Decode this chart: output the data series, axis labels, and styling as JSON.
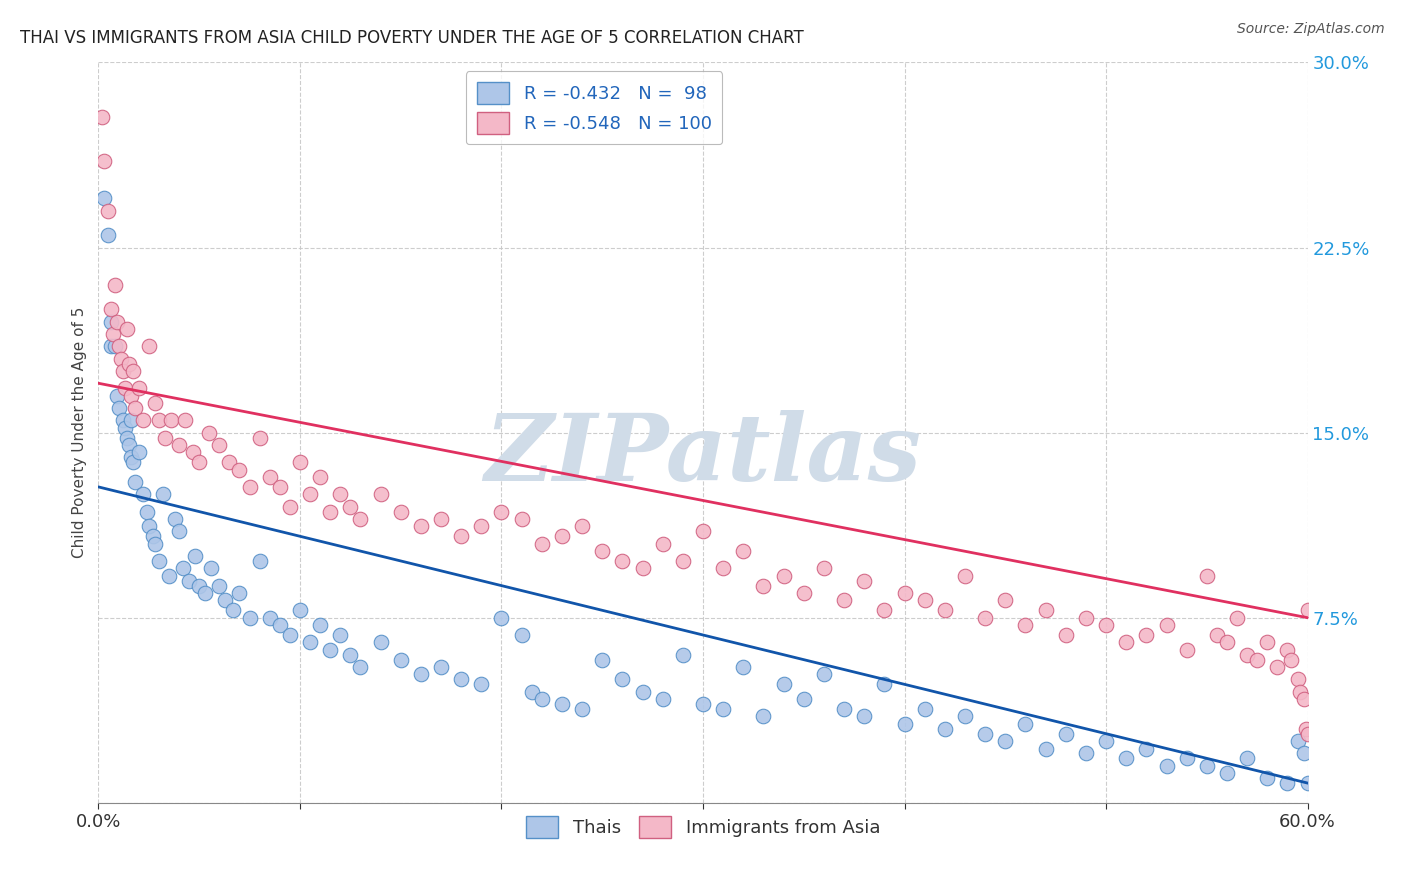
{
  "title": "THAI VS IMMIGRANTS FROM ASIA CHILD POVERTY UNDER THE AGE OF 5 CORRELATION CHART",
  "source": "Source: ZipAtlas.com",
  "ylabel": "Child Poverty Under the Age of 5",
  "xmin": 0.0,
  "xmax": 0.6,
  "ymin": 0.0,
  "ymax": 0.3,
  "yticks": [
    0.0,
    0.075,
    0.15,
    0.225,
    0.3
  ],
  "background_color": "#ffffff",
  "grid_color": "#c8c8c8",
  "watermark_text": "ZIPatlas",
  "watermark_color": "#d0dce8",
  "series": [
    {
      "name": "Thais",
      "face_color": "#aec6e8",
      "edge_color": "#5590c8",
      "line_color": "#1155aa",
      "legend_label": "R = -0.432   N =  98",
      "trend_x0": 0.0,
      "trend_x1": 0.6,
      "trend_y0": 0.128,
      "trend_y1": 0.008,
      "points_x": [
        0.003,
        0.005,
        0.006,
        0.006,
        0.008,
        0.009,
        0.01,
        0.012,
        0.013,
        0.014,
        0.015,
        0.016,
        0.016,
        0.017,
        0.018,
        0.02,
        0.022,
        0.024,
        0.025,
        0.027,
        0.028,
        0.03,
        0.032,
        0.035,
        0.038,
        0.04,
        0.042,
        0.045,
        0.048,
        0.05,
        0.053,
        0.056,
        0.06,
        0.063,
        0.067,
        0.07,
        0.075,
        0.08,
        0.085,
        0.09,
        0.095,
        0.1,
        0.105,
        0.11,
        0.115,
        0.12,
        0.125,
        0.13,
        0.14,
        0.15,
        0.16,
        0.17,
        0.18,
        0.19,
        0.2,
        0.21,
        0.215,
        0.22,
        0.23,
        0.24,
        0.25,
        0.26,
        0.27,
        0.28,
        0.29,
        0.3,
        0.31,
        0.32,
        0.33,
        0.34,
        0.35,
        0.36,
        0.37,
        0.38,
        0.39,
        0.4,
        0.41,
        0.42,
        0.43,
        0.44,
        0.45,
        0.46,
        0.47,
        0.48,
        0.49,
        0.5,
        0.51,
        0.52,
        0.53,
        0.54,
        0.55,
        0.56,
        0.57,
        0.58,
        0.59,
        0.595,
        0.598,
        0.6
      ],
      "points_y": [
        0.245,
        0.23,
        0.195,
        0.185,
        0.185,
        0.165,
        0.16,
        0.155,
        0.152,
        0.148,
        0.145,
        0.14,
        0.155,
        0.138,
        0.13,
        0.142,
        0.125,
        0.118,
        0.112,
        0.108,
        0.105,
        0.098,
        0.125,
        0.092,
        0.115,
        0.11,
        0.095,
        0.09,
        0.1,
        0.088,
        0.085,
        0.095,
        0.088,
        0.082,
        0.078,
        0.085,
        0.075,
        0.098,
        0.075,
        0.072,
        0.068,
        0.078,
        0.065,
        0.072,
        0.062,
        0.068,
        0.06,
        0.055,
        0.065,
        0.058,
        0.052,
        0.055,
        0.05,
        0.048,
        0.075,
        0.068,
        0.045,
        0.042,
        0.04,
        0.038,
        0.058,
        0.05,
        0.045,
        0.042,
        0.06,
        0.04,
        0.038,
        0.055,
        0.035,
        0.048,
        0.042,
        0.052,
        0.038,
        0.035,
        0.048,
        0.032,
        0.038,
        0.03,
        0.035,
        0.028,
        0.025,
        0.032,
        0.022,
        0.028,
        0.02,
        0.025,
        0.018,
        0.022,
        0.015,
        0.018,
        0.015,
        0.012,
        0.018,
        0.01,
        0.008,
        0.025,
        0.02,
        0.008
      ]
    },
    {
      "name": "Immigrants from Asia",
      "face_color": "#f4b8c8",
      "edge_color": "#d06080",
      "line_color": "#e03060",
      "legend_label": "R = -0.548   N = 100",
      "trend_x0": 0.0,
      "trend_x1": 0.6,
      "trend_y0": 0.17,
      "trend_y1": 0.075,
      "points_x": [
        0.002,
        0.003,
        0.005,
        0.006,
        0.007,
        0.008,
        0.009,
        0.01,
        0.011,
        0.012,
        0.013,
        0.014,
        0.015,
        0.016,
        0.017,
        0.018,
        0.02,
        0.022,
        0.025,
        0.028,
        0.03,
        0.033,
        0.036,
        0.04,
        0.043,
        0.047,
        0.05,
        0.055,
        0.06,
        0.065,
        0.07,
        0.075,
        0.08,
        0.085,
        0.09,
        0.095,
        0.1,
        0.105,
        0.11,
        0.115,
        0.12,
        0.125,
        0.13,
        0.14,
        0.15,
        0.16,
        0.17,
        0.18,
        0.19,
        0.2,
        0.21,
        0.22,
        0.23,
        0.24,
        0.25,
        0.26,
        0.27,
        0.28,
        0.29,
        0.3,
        0.31,
        0.32,
        0.33,
        0.34,
        0.35,
        0.36,
        0.37,
        0.38,
        0.39,
        0.4,
        0.41,
        0.42,
        0.43,
        0.44,
        0.45,
        0.46,
        0.47,
        0.48,
        0.49,
        0.5,
        0.51,
        0.52,
        0.53,
        0.54,
        0.55,
        0.555,
        0.56,
        0.565,
        0.57,
        0.575,
        0.58,
        0.585,
        0.59,
        0.592,
        0.595,
        0.596,
        0.598,
        0.599,
        0.6,
        0.6
      ],
      "points_y": [
        0.278,
        0.26,
        0.24,
        0.2,
        0.19,
        0.21,
        0.195,
        0.185,
        0.18,
        0.175,
        0.168,
        0.192,
        0.178,
        0.165,
        0.175,
        0.16,
        0.168,
        0.155,
        0.185,
        0.162,
        0.155,
        0.148,
        0.155,
        0.145,
        0.155,
        0.142,
        0.138,
        0.15,
        0.145,
        0.138,
        0.135,
        0.128,
        0.148,
        0.132,
        0.128,
        0.12,
        0.138,
        0.125,
        0.132,
        0.118,
        0.125,
        0.12,
        0.115,
        0.125,
        0.118,
        0.112,
        0.115,
        0.108,
        0.112,
        0.118,
        0.115,
        0.105,
        0.108,
        0.112,
        0.102,
        0.098,
        0.095,
        0.105,
        0.098,
        0.11,
        0.095,
        0.102,
        0.088,
        0.092,
        0.085,
        0.095,
        0.082,
        0.09,
        0.078,
        0.085,
        0.082,
        0.078,
        0.092,
        0.075,
        0.082,
        0.072,
        0.078,
        0.068,
        0.075,
        0.072,
        0.065,
        0.068,
        0.072,
        0.062,
        0.092,
        0.068,
        0.065,
        0.075,
        0.06,
        0.058,
        0.065,
        0.055,
        0.062,
        0.058,
        0.05,
        0.045,
        0.042,
        0.03,
        0.078,
        0.028
      ]
    }
  ]
}
